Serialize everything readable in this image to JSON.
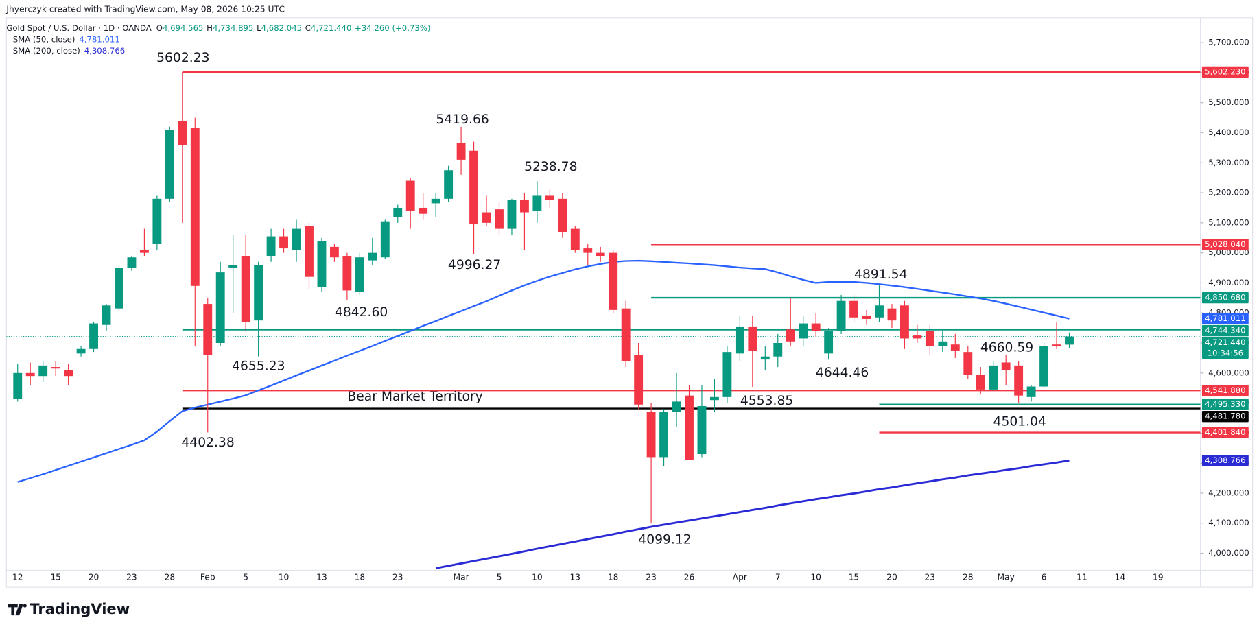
{
  "watermark": "Jhyerczyk created with TradingView.com, May 08, 2026 10:25 UTC",
  "brand": "TradingView",
  "chart_data": {
    "type": "candlestick",
    "title": "Gold Spot / U.S. Dollar · 1D · OANDA",
    "ohlc_legend": [
      {
        "key": "O",
        "value": "4,694.565"
      },
      {
        "key": "H",
        "value": "4,734.895"
      },
      {
        "key": "L",
        "value": "4,682.045"
      },
      {
        "key": "C",
        "value": "4,721.440"
      }
    ],
    "change": "+34.260 (+0.73%)",
    "categories": [
      "12",
      null,
      null,
      "15",
      null,
      null,
      "20",
      null,
      null,
      "23",
      null,
      null,
      "28",
      null,
      null,
      "Feb",
      null,
      null,
      "5",
      null,
      null,
      "10",
      null,
      null,
      "13",
      null,
      null,
      "18",
      null,
      null,
      "23",
      null,
      null,
      null,
      null,
      "Mar",
      null,
      null,
      "5",
      null,
      null,
      "10",
      null,
      null,
      "13",
      null,
      null,
      "18",
      null,
      null,
      "23",
      null,
      null,
      "26",
      null,
      null,
      null,
      "Apr",
      null,
      null,
      "7",
      null,
      null,
      "10",
      null,
      null,
      "15",
      null,
      null,
      "20",
      null,
      null,
      "23",
      null,
      null,
      "28",
      null,
      null,
      "May",
      null,
      null,
      "6",
      null,
      null,
      "11",
      null,
      null,
      "14",
      null,
      null,
      "19"
    ],
    "open": [
      4515,
      4600,
      4590,
      4620,
      4610,
      4665,
      4680,
      4760,
      4815,
      4950,
      5010,
      5030,
      5180,
      5440,
      5415,
      4830,
      4700,
      4950,
      4990,
      4775,
      4990,
      5055,
      5010,
      5090,
      4885,
      5020,
      4990,
      4870,
      4975,
      4985,
      5120,
      5240,
      5150,
      5165,
      5180,
      5365,
      5340,
      5135,
      5145,
      5080,
      5175,
      5140,
      5190,
      5180,
      5080,
      5015,
      5000,
      5000,
      4815,
      4660,
      4470,
      4320,
      4470,
      4525,
      4330,
      4510,
      4520,
      4665,
      4755,
      4645,
      4655,
      4745,
      4715,
      4765,
      4665,
      4740,
      4840,
      4790,
      4785,
      4815,
      4825,
      4725,
      4740,
      4690,
      4695,
      4670,
      4595,
      4545,
      4635,
      4625,
      4520,
      4555,
      4695,
      4694.565,
      null,
      null,
      null,
      null,
      null,
      null,
      null
    ],
    "high": [
      4630,
      4635,
      4640,
      4640,
      4630,
      4690,
      4770,
      4830,
      4960,
      4990,
      5080,
      5190,
      5420,
      5602.23,
      5450,
      4850,
      4970,
      5060,
      5060,
      4970,
      5080,
      5080,
      5110,
      5100,
      5050,
      5030,
      5000,
      5000,
      5050,
      5110,
      5160,
      5250,
      5200,
      5200,
      5290,
      5419.66,
      5370,
      5190,
      5170,
      5180,
      5200,
      5238.78,
      5210,
      5200,
      5090,
      5030,
      5020,
      5010,
      4840,
      4700,
      4500,
      4480,
      4600,
      4560,
      4560,
      4580,
      4690,
      4790,
      4790,
      4690,
      4730,
      4850,
      4790,
      4800,
      4750,
      4860,
      4860,
      4810,
      4891.54,
      4830,
      4840,
      4760,
      4760,
      4740,
      4730,
      4690,
      4620,
      4640,
      4660.59,
      4640,
      4560,
      4700,
      4770,
      4734.895,
      null,
      null,
      null,
      null,
      null,
      null,
      null
    ],
    "low": [
      4505,
      4560,
      4570,
      4590,
      4560,
      4655,
      4670,
      4740,
      4805,
      4940,
      4990,
      5010,
      5170,
      5100,
      4690,
      4402.38,
      4690,
      4800,
      4740,
      4655.23,
      4970,
      5000,
      4970,
      4880,
      4870,
      4970,
      4842.6,
      4860,
      4960,
      4980,
      5100,
      5080,
      5110,
      5120,
      5170,
      5260,
      4996.27,
      5090,
      5060,
      5060,
      5010,
      5100,
      5150,
      5050,
      5000,
      4960,
      4970,
      4800,
      4620,
      4480,
      4099.12,
      4290,
      4420,
      4310,
      4320,
      4470,
      4500,
      4640,
      4553.85,
      4610,
      4620,
      4690,
      4690,
      4720,
      4644.46,
      4730,
      4770,
      4760,
      4770,
      4750,
      4680,
      4700,
      4660,
      4670,
      4650,
      4580,
      4530,
      4540,
      4560,
      4501.04,
      4505,
      4550,
      4680,
      4682.045,
      null,
      null,
      null,
      null,
      null,
      null,
      null
    ],
    "close": [
      4600,
      4590,
      4625,
      4615,
      4590,
      4680,
      4765,
      4825,
      4950,
      4985,
      5000,
      5180,
      5410,
      5360,
      4890,
      4660,
      4935,
      4960,
      4770,
      4960,
      5055,
      5015,
      5080,
      4920,
      5040,
      4985,
      4875,
      4985,
      5000,
      5105,
      5150,
      5140,
      5130,
      5180,
      5275,
      5310,
      5095,
      5100,
      5080,
      5175,
      5135,
      5190,
      5175,
      5070,
      5010,
      5000,
      4990,
      4810,
      4640,
      4495,
      4320,
      4470,
      4505,
      4310,
      4490,
      4520,
      4670,
      4755,
      4675,
      4655,
      4700,
      4705,
      4765,
      4740,
      4740,
      4840,
      4785,
      4780,
      4825,
      4775,
      4715,
      4715,
      4690,
      4705,
      4675,
      4595,
      4545,
      4625,
      4610,
      4525,
      4555,
      4690,
      4690,
      4721.44,
      null,
      null,
      null,
      null,
      null,
      null,
      null
    ],
    "up_color": "#089981",
    "down_color": "#f23645",
    "series": [
      {
        "name": "SMA (50, close)",
        "value_label": "4,781.011",
        "color": "#2962ff",
        "values": [
          4237,
          4250,
          4263,
          4277,
          4291,
          4305,
          4319,
          4333,
          4347,
          4361,
          4376,
          4405,
          4440,
          4473,
          4485,
          4495,
          4505,
          4515,
          4526,
          4542,
          4558,
          4575,
          4592,
          4608,
          4625,
          4641,
          4658,
          4674,
          4690,
          4707,
          4723,
          4740,
          4757,
          4773,
          4790,
          4806,
          4823,
          4839,
          4857,
          4875,
          4892,
          4907,
          4921,
          4933,
          4945,
          4955,
          4963,
          4970,
          4973,
          4974,
          4972,
          4970,
          4967,
          4965,
          4962,
          4959,
          4955,
          4951,
          4948,
          4946,
          4935,
          4922,
          4910,
          4900,
          4903,
          4904,
          4903,
          4900,
          4896,
          4891,
          4886,
          4880,
          4874,
          4868,
          4862,
          4855,
          4848,
          4840,
          4831,
          4821,
          4811,
          4801,
          4791,
          4781.011,
          null,
          null,
          null,
          null,
          null,
          null,
          null
        ]
      },
      {
        "name": "SMA (200, close)",
        "value_label": "4,308.766",
        "color": "#2b2bd6",
        "values": [
          null,
          null,
          null,
          null,
          null,
          null,
          null,
          null,
          null,
          null,
          null,
          null,
          null,
          null,
          null,
          null,
          null,
          null,
          null,
          null,
          null,
          null,
          null,
          null,
          null,
          null,
          null,
          null,
          null,
          null,
          null,
          null,
          null,
          3950,
          3958,
          3966,
          3974,
          3982,
          3990,
          3998,
          4006,
          4015,
          4023,
          4031,
          4039,
          4047,
          4055,
          4063,
          4072,
          4080,
          4088,
          4095,
          4102,
          4109,
          4116,
          4123,
          4130,
          4137,
          4144,
          4151,
          4159,
          4166,
          4173,
          4180,
          4186,
          4193,
          4199,
          4206,
          4213,
          4219,
          4226,
          4233,
          4239,
          4246,
          4252,
          4259,
          4265,
          4271,
          4277,
          4283,
          4290,
          4296,
          4302,
          4308.766,
          null,
          null,
          null,
          null,
          null,
          null,
          null
        ]
      }
    ],
    "levels": [
      {
        "value": 5602.23,
        "label": "5,602.230",
        "color": "#f23645"
      },
      {
        "value": 5028.04,
        "label": "5,028.040",
        "color": "#f23645"
      },
      {
        "value": 4850.68,
        "label": "4,850.680",
        "color": "#089981"
      },
      {
        "value": 4744.34,
        "label": "4,744.340",
        "color": "#089981"
      },
      {
        "value": 4541.88,
        "label": "4,541.880",
        "color": "#f23645"
      },
      {
        "value": 4495.33,
        "label": "4,495.330",
        "color": "#089981"
      },
      {
        "value": 4481.78,
        "label": "4,481.780",
        "color": "#000000"
      },
      {
        "value": 4401.84,
        "label": "4,401.840",
        "color": "#f23645"
      }
    ],
    "price": {
      "value": 4721.44,
      "label": "4,721.440",
      "countdown": "10:34:56",
      "color": "#089981"
    },
    "annotations": [
      {
        "text": "5602.23"
      },
      {
        "text": "5419.66"
      },
      {
        "text": "5238.78"
      },
      {
        "text": "4996.27"
      },
      {
        "text": "4842.60"
      },
      {
        "text": "4655.23"
      },
      {
        "text": "4402.38"
      },
      {
        "text": "4099.12"
      },
      {
        "text": "4553.85"
      },
      {
        "text": "4644.46"
      },
      {
        "text": "4891.54"
      },
      {
        "text": "4660.59"
      },
      {
        "text": "4501.04"
      },
      {
        "text": "Bear Market Territory"
      }
    ],
    "ylim": [
      3943,
      5783
    ],
    "yticks": [
      {
        "value": 4000,
        "label": "4,000.000"
      },
      {
        "value": 4100,
        "label": "4,100.000"
      },
      {
        "value": 4200,
        "label": "4,200.000"
      },
      {
        "value": 4300,
        "label": "4,300.000"
      },
      {
        "value": 4400,
        "label": "4,400.000"
      },
      {
        "value": 4500,
        "label": "4,500.000"
      },
      {
        "value": 4600,
        "label": "4,600.000"
      },
      {
        "value": 4700,
        "label": "4,700.000"
      },
      {
        "value": 4800,
        "label": "4,800.000"
      },
      {
        "value": 4900,
        "label": "4,900.000"
      },
      {
        "value": 5000,
        "label": "5,000.000"
      },
      {
        "value": 5100,
        "label": "5,100.000"
      },
      {
        "value": 5200,
        "label": "5,200.000"
      },
      {
        "value": 5300,
        "label": "5,300.000"
      },
      {
        "value": 5400,
        "label": "5,400.000"
      },
      {
        "value": 5500,
        "label": "5,500.000"
      },
      {
        "value": 5600,
        "label": "5,600.000"
      },
      {
        "value": 5700,
        "label": "5,700.000"
      }
    ],
    "grid": false
  }
}
